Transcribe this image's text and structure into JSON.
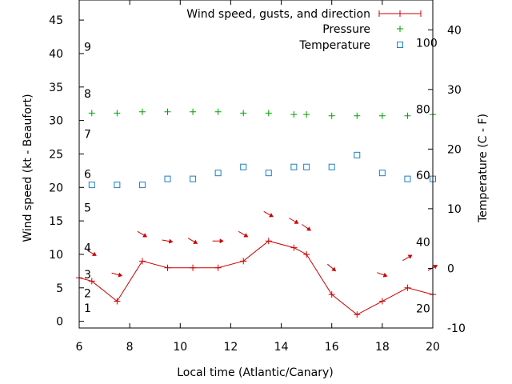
{
  "chart_data": {
    "type": "line",
    "xlabel": "Local time (Atlantic/Canary)",
    "ylabel_left": "Wind speed (kt - Beaufort)",
    "ylabel_right": "Temperature (C - F)",
    "xlim": [
      6,
      20
    ],
    "ylim_left": [
      -1,
      48
    ],
    "ylim_right": [
      -10,
      45
    ],
    "x_ticks": [
      6,
      8,
      10,
      12,
      14,
      16,
      18,
      20
    ],
    "y_ticks_left": [
      0,
      5,
      10,
      15,
      20,
      25,
      30,
      35,
      40,
      45
    ],
    "y_ticks_right": [
      -10,
      0,
      10,
      20,
      30,
      40
    ],
    "beaufort_labels": [
      {
        "label": "1",
        "kt": 2
      },
      {
        "label": "2",
        "kt": 4.2
      },
      {
        "label": "3",
        "kt": 7
      },
      {
        "label": "4",
        "kt": 11
      },
      {
        "label": "5",
        "kt": 17
      },
      {
        "label": "6",
        "kt": 22
      },
      {
        "label": "7",
        "kt": 28
      },
      {
        "label": "8",
        "kt": 34
      },
      {
        "label": "9",
        "kt": 41
      }
    ],
    "fahrenheit_labels": [
      {
        "label": "20",
        "c": -6.7
      },
      {
        "label": "40",
        "c": 4.4
      },
      {
        "label": "60",
        "c": 15.6
      },
      {
        "label": "80",
        "c": 26.7
      },
      {
        "label": "100",
        "c": 37.8
      }
    ],
    "legend_position": "top-right",
    "series": [
      {
        "name": "Wind speed, gusts, and direction",
        "color": "#cc0000",
        "x": [
          6,
          6.5,
          7.5,
          8.5,
          9.5,
          10.5,
          11.5,
          12.5,
          13.5,
          14.5,
          15,
          16,
          17,
          18,
          19,
          20
        ],
        "values": [
          6.5,
          6,
          3,
          9,
          8,
          8,
          8,
          9,
          12,
          11,
          10,
          4,
          1,
          3,
          5,
          4
        ]
      },
      {
        "name": "Pressure",
        "color": "#00a000",
        "x": [
          6.5,
          7.5,
          8.5,
          9.5,
          10.5,
          11.5,
          12.5,
          13.5,
          14.5,
          15,
          16,
          17,
          18,
          19,
          20
        ],
        "values": [
          31.1,
          31.1,
          31.3,
          31.3,
          31.3,
          31.3,
          31.1,
          31.1,
          30.9,
          30.9,
          30.7,
          30.7,
          30.7,
          30.7,
          30.9
        ]
      },
      {
        "name": "Temperature",
        "color": "#1b7fc4",
        "x": [
          6.5,
          7.5,
          8.5,
          9.5,
          10.5,
          11.5,
          12.5,
          13.5,
          14.5,
          15,
          16,
          17,
          18,
          19,
          20
        ],
        "values": [
          14,
          14,
          14,
          15,
          15,
          16,
          17,
          16,
          17,
          17,
          17,
          19,
          16,
          15,
          15
        ]
      }
    ],
    "wind_arrows": {
      "color": "#cc0000",
      "points": [
        {
          "x": 6.5,
          "y": 10.2,
          "angle": 30
        },
        {
          "x": 7.5,
          "y": 7,
          "angle": 15
        },
        {
          "x": 8.5,
          "y": 13,
          "angle": 30
        },
        {
          "x": 9.5,
          "y": 12,
          "angle": 10
        },
        {
          "x": 10.5,
          "y": 12,
          "angle": 30
        },
        {
          "x": 11.5,
          "y": 12,
          "angle": 0
        },
        {
          "x": 12.5,
          "y": 13,
          "angle": 30
        },
        {
          "x": 13.5,
          "y": 16,
          "angle": 30
        },
        {
          "x": 14.5,
          "y": 15,
          "angle": 30
        },
        {
          "x": 15,
          "y": 14,
          "angle": 35
        },
        {
          "x": 16,
          "y": 8,
          "angle": 40
        },
        {
          "x": 18,
          "y": 7,
          "angle": 20
        },
        {
          "x": 19,
          "y": 9.5,
          "angle": -30
        },
        {
          "x": 20,
          "y": 8,
          "angle": -30
        }
      ]
    }
  }
}
